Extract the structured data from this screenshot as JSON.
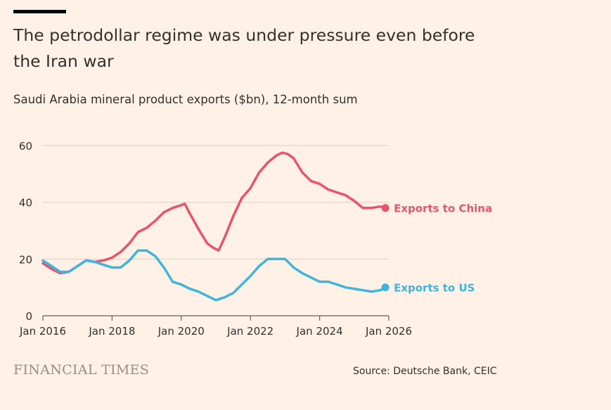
{
  "header": {
    "title": "The petrodollar regime was under pressure even before the Iran war",
    "subtitle": "Saudi Arabia mineral product exports ($bn), 12-month sum"
  },
  "footer": {
    "brand": "FINANCIAL TIMES",
    "source": "Source: Deutsche Bank, CEIC"
  },
  "colors": {
    "background": "#fff1e5",
    "china": "#e9546b",
    "us": "#3eb4de",
    "grid": "#d9cfc6",
    "text": "#33302e"
  },
  "chart_data": {
    "type": "line",
    "title": "The petrodollar regime was under pressure even before the Iran war",
    "subtitle": "Saudi Arabia mineral product exports ($bn), 12-month sum",
    "xlabel": "",
    "ylabel": "",
    "xlim": [
      2016.0,
      2026.0
    ],
    "ylim": [
      0,
      60
    ],
    "yticks": [
      0,
      20,
      40,
      60
    ],
    "xticks": [
      {
        "value": 2016.0,
        "label": "Jan 2016"
      },
      {
        "value": 2018.0,
        "label": "Jan 2018"
      },
      {
        "value": 2020.0,
        "label": "Jan 2020"
      },
      {
        "value": 2022.0,
        "label": "Jan 2022"
      },
      {
        "value": 2024.0,
        "label": "Jan 2024"
      },
      {
        "value": 2026.0,
        "label": "Jan 2026"
      }
    ],
    "grid": "horizontal",
    "legend": "inline labels at line ends",
    "series": [
      {
        "name": "Exports to China",
        "color": "#e9546b",
        "x": [
          2016.0,
          2016.25,
          2016.5,
          2016.75,
          2017.0,
          2017.25,
          2017.5,
          2017.75,
          2018.0,
          2018.25,
          2018.5,
          2018.75,
          2019.0,
          2019.25,
          2019.5,
          2019.75,
          2020.0,
          2020.1,
          2020.25,
          2020.5,
          2020.75,
          2020.92,
          2021.08,
          2021.25,
          2021.5,
          2021.75,
          2022.0,
          2022.25,
          2022.5,
          2022.75,
          2022.92,
          2023.08,
          2023.25,
          2023.5,
          2023.75,
          2024.0,
          2024.25,
          2024.5,
          2024.75,
          2025.0,
          2025.25,
          2025.5,
          2025.75,
          2025.9
        ],
        "values": [
          18.5,
          16.5,
          15.0,
          15.5,
          17.5,
          19.5,
          19.0,
          19.5,
          20.5,
          22.5,
          25.5,
          29.5,
          31.0,
          33.5,
          36.5,
          38.0,
          39.0,
          39.5,
          36.0,
          30.5,
          25.5,
          24.0,
          23.0,
          27.5,
          35.0,
          41.5,
          45.0,
          50.5,
          54.0,
          56.5,
          57.5,
          57.0,
          55.5,
          50.5,
          47.5,
          46.5,
          44.5,
          43.5,
          42.5,
          40.5,
          38.0,
          38.0,
          38.5,
          38.0
        ]
      },
      {
        "name": "Exports to US",
        "color": "#3eb4de",
        "x": [
          2016.0,
          2016.25,
          2016.5,
          2016.75,
          2017.0,
          2017.25,
          2017.5,
          2017.75,
          2018.0,
          2018.25,
          2018.5,
          2018.75,
          2019.0,
          2019.25,
          2019.5,
          2019.75,
          2020.0,
          2020.25,
          2020.5,
          2020.75,
          2021.0,
          2021.25,
          2021.5,
          2021.75,
          2022.0,
          2022.25,
          2022.5,
          2022.75,
          2023.0,
          2023.25,
          2023.5,
          2023.75,
          2024.0,
          2024.25,
          2024.5,
          2024.75,
          2025.0,
          2025.25,
          2025.5,
          2025.75,
          2025.9
        ],
        "values": [
          19.5,
          17.5,
          15.5,
          15.5,
          17.5,
          19.5,
          19.0,
          18.0,
          17.0,
          17.0,
          19.5,
          23.0,
          23.0,
          21.0,
          17.0,
          12.0,
          11.0,
          9.5,
          8.5,
          7.0,
          5.5,
          6.5,
          8.0,
          11.0,
          14.0,
          17.5,
          20.0,
          20.0,
          20.0,
          17.0,
          15.0,
          13.5,
          12.0,
          12.0,
          11.0,
          10.0,
          9.5,
          9.0,
          8.5,
          9.0,
          10.0
        ]
      }
    ]
  }
}
